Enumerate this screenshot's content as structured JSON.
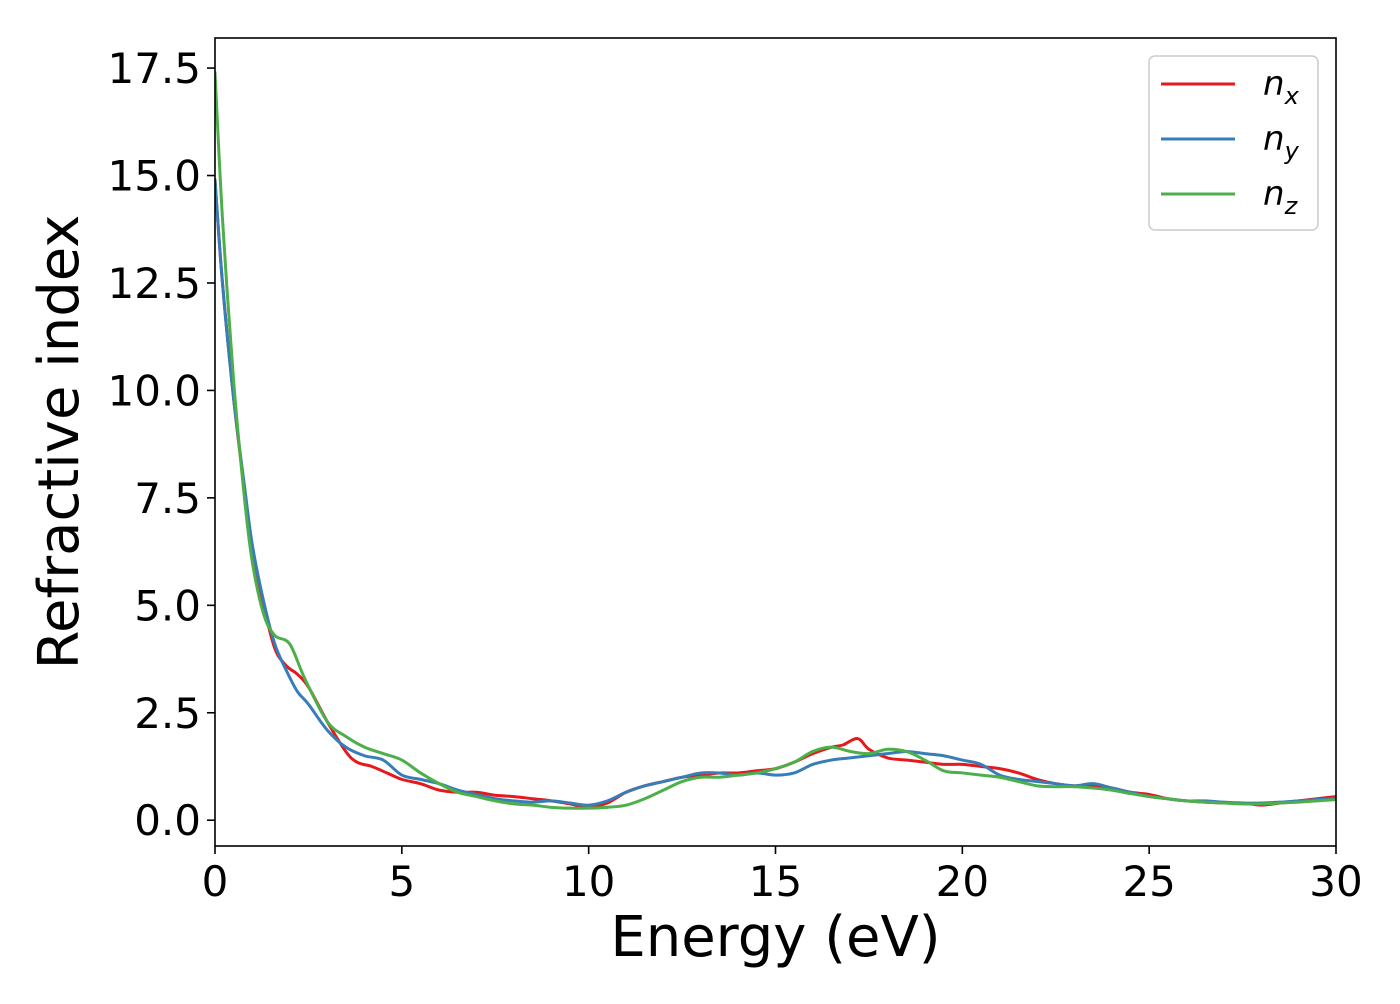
{
  "chart_data": {
    "type": "line",
    "title": "",
    "xlabel": "Energy (eV)",
    "ylabel": "Refractive index",
    "xlim": [
      0,
      30
    ],
    "ylim": [
      -0.6,
      18.2
    ],
    "xticks": [
      0,
      5,
      10,
      15,
      20,
      25,
      30
    ],
    "xtick_labels": [
      "0",
      "5",
      "10",
      "15",
      "20",
      "25",
      "30"
    ],
    "yticks": [
      0,
      2.5,
      5,
      7.5,
      10,
      12.5,
      15,
      17.5
    ],
    "ytick_labels": [
      "0.0",
      "2.5",
      "5.0",
      "7.5",
      "10.0",
      "12.5",
      "15.0",
      "17.5"
    ],
    "grid": false,
    "legend_position": "top-right",
    "series": [
      {
        "name": "n",
        "subscript": "x",
        "color": "#e41a1c",
        "x": [
          0,
          0.2,
          0.5,
          0.8,
          1.0,
          1.3,
          1.6,
          1.9,
          2.2,
          2.5,
          3.0,
          3.5,
          3.8,
          4.2,
          4.6,
          5.0,
          5.5,
          6.0,
          6.5,
          7.0,
          7.5,
          8.0,
          8.5,
          9.0,
          9.5,
          10.0,
          10.5,
          11.0,
          11.5,
          12.0,
          12.5,
          13.0,
          13.5,
          14.0,
          14.5,
          15.0,
          15.5,
          16.0,
          16.5,
          16.8,
          17.2,
          17.5,
          18.0,
          18.5,
          19.0,
          19.5,
          20.0,
          20.5,
          21.0,
          21.5,
          22.0,
          22.5,
          23.0,
          23.5,
          24.0,
          24.5,
          25.0,
          25.5,
          26.0,
          26.5,
          27.0,
          27.5,
          28.0,
          28.5,
          29.0,
          29.5,
          30.0
        ],
        "y": [
          14.9,
          12.5,
          9.8,
          7.6,
          6.3,
          5.0,
          4.0,
          3.6,
          3.4,
          3.1,
          2.3,
          1.6,
          1.35,
          1.25,
          1.1,
          0.95,
          0.85,
          0.7,
          0.65,
          0.65,
          0.58,
          0.55,
          0.5,
          0.45,
          0.38,
          0.3,
          0.4,
          0.65,
          0.8,
          0.9,
          1.0,
          1.05,
          1.1,
          1.1,
          1.15,
          1.2,
          1.35,
          1.55,
          1.7,
          1.75,
          1.9,
          1.65,
          1.45,
          1.4,
          1.35,
          1.3,
          1.3,
          1.25,
          1.2,
          1.1,
          0.95,
          0.85,
          0.8,
          0.8,
          0.75,
          0.65,
          0.6,
          0.5,
          0.45,
          0.42,
          0.4,
          0.4,
          0.35,
          0.4,
          0.45,
          0.5,
          0.55
        ]
      },
      {
        "name": "n",
        "subscript": "y",
        "color": "#377eb8",
        "x": [
          0,
          0.2,
          0.5,
          0.8,
          1.0,
          1.3,
          1.6,
          1.9,
          2.2,
          2.5,
          3.0,
          3.5,
          4.0,
          4.5,
          5.0,
          5.5,
          6.0,
          6.5,
          7.0,
          7.5,
          8.0,
          8.5,
          9.0,
          9.5,
          10.0,
          10.5,
          11.0,
          11.5,
          12.0,
          12.5,
          13.0,
          13.5,
          14.0,
          14.5,
          15.0,
          15.5,
          16.0,
          16.5,
          17.0,
          17.5,
          18.0,
          18.5,
          19.0,
          19.5,
          20.0,
          20.5,
          21.0,
          21.5,
          22.0,
          22.5,
          23.0,
          23.5,
          24.0,
          24.5,
          25.0,
          25.5,
          26.0,
          26.5,
          27.0,
          27.5,
          28.0,
          28.5,
          29.0,
          29.5,
          30.0
        ],
        "y": [
          14.9,
          12.5,
          9.8,
          7.7,
          6.4,
          5.1,
          4.1,
          3.5,
          3.0,
          2.7,
          2.1,
          1.7,
          1.5,
          1.4,
          1.05,
          0.95,
          0.85,
          0.7,
          0.6,
          0.5,
          0.45,
          0.42,
          0.45,
          0.4,
          0.35,
          0.45,
          0.65,
          0.8,
          0.9,
          1.0,
          1.1,
          1.1,
          1.05,
          1.1,
          1.05,
          1.1,
          1.3,
          1.4,
          1.45,
          1.5,
          1.55,
          1.6,
          1.55,
          1.5,
          1.4,
          1.3,
          1.05,
          0.95,
          0.9,
          0.85,
          0.8,
          0.85,
          0.75,
          0.65,
          0.55,
          0.5,
          0.45,
          0.45,
          0.42,
          0.4,
          0.4,
          0.42,
          0.45,
          0.48,
          0.5
        ]
      },
      {
        "name": "n",
        "subscript": "z",
        "color": "#4daf4a",
        "x": [
          0,
          0.2,
          0.5,
          0.8,
          1.0,
          1.3,
          1.6,
          2.0,
          2.4,
          3.0,
          3.5,
          4.0,
          4.5,
          5.0,
          5.5,
          6.0,
          6.5,
          7.0,
          7.5,
          8.0,
          8.5,
          9.0,
          9.5,
          10.0,
          10.5,
          11.0,
          11.5,
          12.0,
          12.5,
          13.0,
          13.5,
          14.0,
          14.5,
          15.0,
          15.5,
          16.0,
          16.5,
          17.0,
          17.5,
          18.0,
          18.5,
          19.0,
          19.5,
          20.0,
          20.5,
          21.0,
          21.5,
          22.0,
          22.5,
          23.0,
          23.5,
          24.0,
          24.5,
          25.0,
          25.5,
          26.0,
          26.5,
          27.0,
          27.5,
          28.0,
          28.5,
          29.0,
          29.5,
          30.0
        ],
        "y": [
          17.4,
          14.0,
          10.2,
          7.4,
          6.0,
          4.8,
          4.3,
          4.1,
          3.3,
          2.3,
          1.95,
          1.7,
          1.55,
          1.4,
          1.1,
          0.85,
          0.65,
          0.55,
          0.45,
          0.38,
          0.35,
          0.3,
          0.28,
          0.28,
          0.3,
          0.35,
          0.5,
          0.7,
          0.9,
          1.0,
          1.0,
          1.05,
          1.1,
          1.2,
          1.35,
          1.6,
          1.7,
          1.6,
          1.55,
          1.65,
          1.6,
          1.4,
          1.15,
          1.1,
          1.05,
          1.0,
          0.9,
          0.8,
          0.78,
          0.78,
          0.75,
          0.7,
          0.62,
          0.55,
          0.5,
          0.45,
          0.42,
          0.4,
          0.38,
          0.38,
          0.4,
          0.42,
          0.45,
          0.48
        ]
      }
    ]
  }
}
